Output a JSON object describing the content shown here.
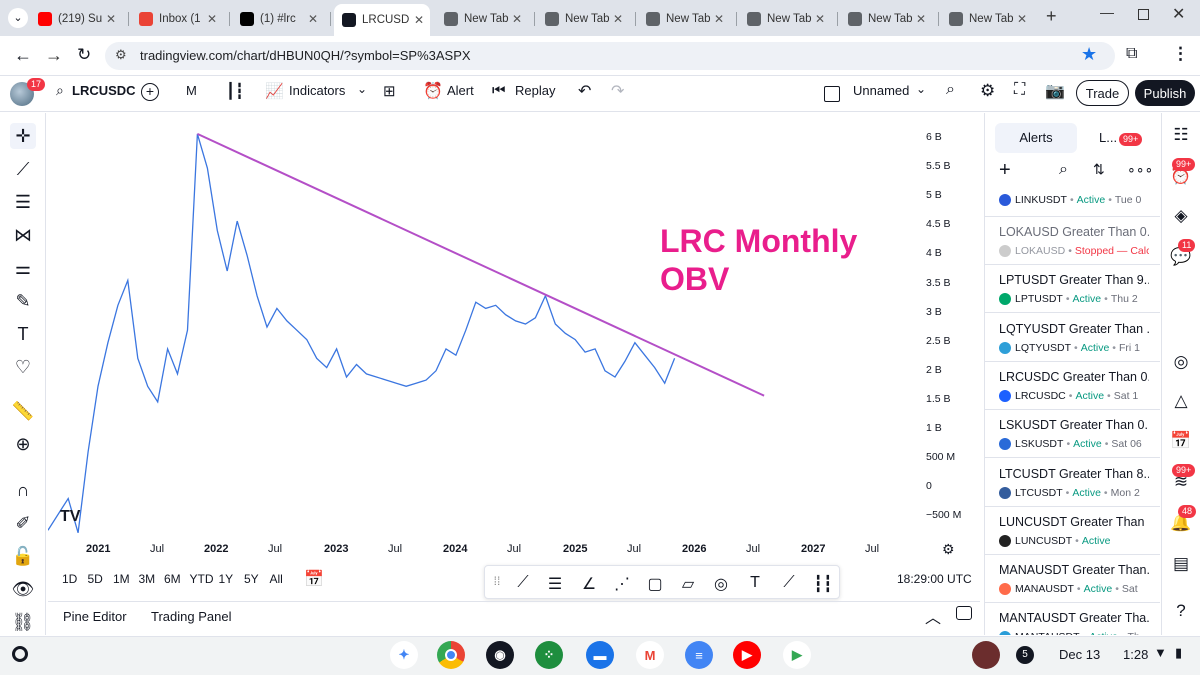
{
  "browser": {
    "tabs": [
      {
        "label": "(219) Su",
        "icon": "youtube-icon",
        "color": "#ff0000"
      },
      {
        "label": "Inbox (1",
        "icon": "gmail-icon",
        "color": "#ea4335"
      },
      {
        "label": "(1) #lrc",
        "icon": "x-icon",
        "color": "#000000"
      },
      {
        "label": "LRCUSD",
        "icon": "tradingview-icon",
        "color": "#131722",
        "active": true
      },
      {
        "label": "New Tab",
        "icon": "chrome-icon",
        "color": "#5f6368"
      },
      {
        "label": "New Tab",
        "icon": "chrome-icon",
        "color": "#5f6368"
      },
      {
        "label": "New Tab",
        "icon": "chrome-icon",
        "color": "#5f6368"
      },
      {
        "label": "New Tab",
        "icon": "chrome-icon",
        "color": "#5f6368"
      },
      {
        "label": "New Tab",
        "icon": "chrome-icon",
        "color": "#5f6368"
      },
      {
        "label": "New Tab",
        "icon": "chrome-icon",
        "color": "#5f6368"
      }
    ],
    "url": "tradingview.com/chart/dHBUN0QH/?symbol=SP%3ASPX"
  },
  "toolbar": {
    "avatar_badge": "17",
    "symbol": "LRCUSDC",
    "interval": "M",
    "indicators_label": "Indicators",
    "alert_label": "Alert",
    "replay_label": "Replay",
    "layout_name": "Unnamed",
    "trade_label": "Trade",
    "publish_label": "Publish"
  },
  "chart_data": {
    "type": "line",
    "title": "LRC Monthly OBV",
    "title_color": "#e91e8c",
    "series": [
      {
        "name": "",
        "color": "#3b76e0",
        "x": [
          "2020-06",
          "2020-08",
          "2020-10",
          "2020-11",
          "2020-12",
          "2021-01",
          "2021-02",
          "2021-03",
          "2021-04",
          "2021-05",
          "2021-06",
          "2021-07",
          "2021-08",
          "2021-09",
          "2021-10",
          "2021-11",
          "2021-12",
          "2022-01",
          "2022-02",
          "2022-03",
          "2022-04",
          "2022-05",
          "2022-06",
          "2022-07",
          "2022-08",
          "2022-09",
          "2022-10",
          "2022-11",
          "2022-12",
          "2023-01",
          "2023-02",
          "2023-03",
          "2023-04",
          "2023-05",
          "2023-06",
          "2023-07",
          "2023-08",
          "2023-09",
          "2023-10",
          "2023-11",
          "2023-12",
          "2024-01",
          "2024-02",
          "2024-03",
          "2024-04",
          "2024-05",
          "2024-06",
          "2024-07",
          "2024-08",
          "2024-09",
          "2024-10",
          "2024-11",
          "2024-12",
          "2025-01",
          "2025-02",
          "2025-03",
          "2025-04",
          "2025-05",
          "2025-06",
          "2025-07",
          "2025-08",
          "2025-09",
          "2025-10",
          "2025-11",
          "2025-12"
        ],
        "values": [
          0,
          -0.3,
          0.2,
          -0.35,
          0.95,
          2.0,
          2.7,
          3.3,
          3.7,
          2.45,
          2.0,
          1.75,
          2.6,
          2.2,
          2.9,
          6.05,
          5.5,
          4.5,
          3.85,
          4.65,
          4.1,
          3.45,
          2.95,
          3.25,
          3.05,
          2.9,
          2.75,
          2.45,
          2.3,
          2.6,
          2.15,
          2.35,
          2.2,
          2.15,
          2.1,
          2.05,
          2.0,
          2.05,
          2.1,
          2.25,
          2.6,
          2.5,
          2.9,
          3.35,
          3.25,
          3.3,
          3.15,
          3.05,
          3.0,
          3.1,
          3.45,
          3.0,
          2.85,
          2.75,
          2.55,
          2.6,
          2.25,
          2.15,
          2.4,
          2.7,
          2.5,
          2.3,
          2.05,
          2.45,
          null
        ]
      }
    ],
    "trendline": {
      "color": "#b44fc7",
      "from": {
        "x": "2021-11",
        "y": 6.05
      },
      "to": {
        "x": "2026-08",
        "y": 1.85
      }
    },
    "y_ticks": [
      "6 B",
      "5.5 B",
      "5 B",
      "4.5 B",
      "4 B",
      "3.5 B",
      "3 B",
      "2.5 B",
      "2 B",
      "1.5 B",
      "1 B",
      "500 M",
      "0",
      "−500 M"
    ],
    "x_ticks": [
      "2021",
      "Jul",
      "2022",
      "Jul",
      "2023",
      "Jul",
      "2024",
      "Jul",
      "2025",
      "Jul",
      "2026",
      "Jul",
      "2027",
      "Jul"
    ],
    "ylim": [
      -0.55,
      6.25
    ],
    "grid": false
  },
  "bottom": {
    "ranges": [
      "1D",
      "5D",
      "1M",
      "3M",
      "6M",
      "YTD",
      "1Y",
      "5Y",
      "All"
    ],
    "time": "18:29:00 UTC",
    "pine_editor": "Pine Editor",
    "trading_panel": "Trading Panel"
  },
  "alerts_panel": {
    "tab_alerts": "Alerts",
    "tab_log": "L...",
    "log_badge": "99+",
    "items": [
      {
        "title": "",
        "symbol": "LINKUSDT",
        "status": "Active",
        "date": "Tue 0",
        "color": "#2a5ada"
      },
      {
        "title": "LOKAUSD Greater Than 0...",
        "symbol": "LOKAUSD",
        "status": "Stopped — Calc",
        "date": "",
        "color": "#cccccc",
        "stopped": true
      },
      {
        "title": "LPTUSDT Greater Than 9...",
        "symbol": "LPTUSDT",
        "status": "Active",
        "date": "Thu 2",
        "color": "#00a86b"
      },
      {
        "title": "LQTYUSDT Greater Than ...",
        "symbol": "LQTYUSDT",
        "status": "Active",
        "date": "Fri 1",
        "color": "#2e9fd8"
      },
      {
        "title": "LRCUSDC Greater Than 0...",
        "symbol": "LRCUSDC",
        "status": "Active",
        "date": "Sat 1",
        "color": "#1c60ff"
      },
      {
        "title": "LSKUSDT Greater Than 0...",
        "symbol": "LSKUSDT",
        "status": "Active",
        "date": "Sat 06",
        "color": "#2a6ad8"
      },
      {
        "title": "LTCUSDT Greater Than 8...",
        "symbol": "LTCUSDT",
        "status": "Active",
        "date": "Mon 2",
        "color": "#345d9d"
      },
      {
        "title": "LUNCUSDT Greater Than ...",
        "symbol": "LUNCUSDT",
        "status": "Active",
        "date": "",
        "color": "#222222"
      },
      {
        "title": "MANAUSDT Greater Than...",
        "symbol": "MANAUSDT",
        "status": "Active",
        "date": "Sat",
        "color": "#ff6b4a"
      },
      {
        "title": "MANTAUSDT Greater Tha...",
        "symbol": "MANTAUSDT",
        "status": "Active",
        "date": "Th",
        "color": "#2a9dd8"
      }
    ]
  },
  "right_strip": {
    "badge1": "99+",
    "badge2": "11",
    "badge3": "99+",
    "badge4": "48"
  },
  "android": {
    "notif_count": "5",
    "date": "Dec 13",
    "time": "1:28"
  }
}
